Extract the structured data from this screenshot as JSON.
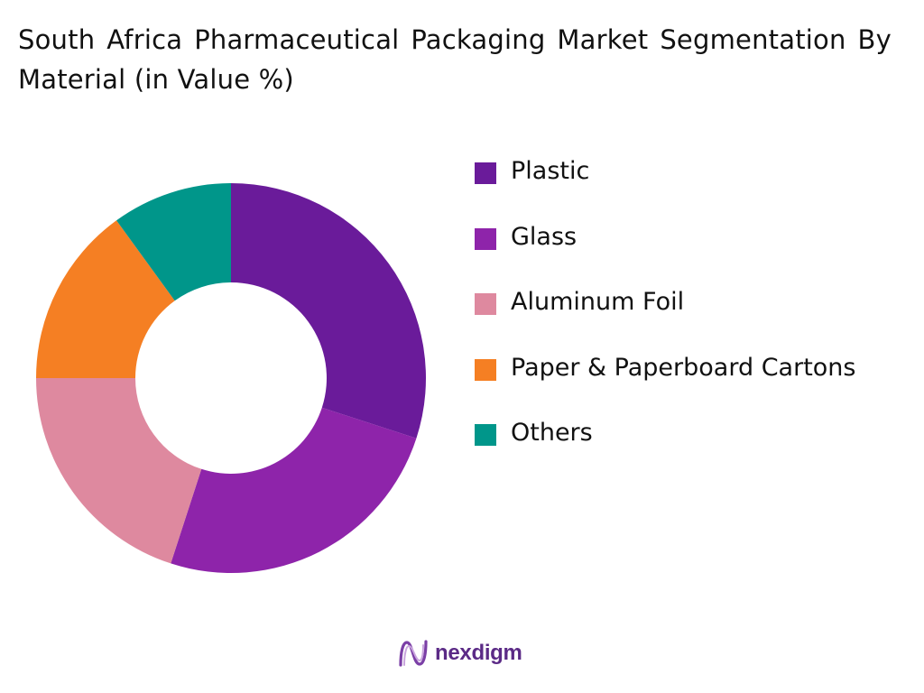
{
  "title": "South Africa Pharmaceutical Packaging Market Segmentation By Material (in Value %)",
  "chart_data": {
    "type": "pie",
    "title": "South Africa Pharmaceutical Packaging Market Segmentation By Material (in Value %)",
    "donut": true,
    "categories": [
      "Plastic",
      "Glass",
      "Aluminum Foil",
      "Paper & Paperboard Cartons",
      "Others"
    ],
    "values": [
      30,
      25,
      20,
      15,
      10
    ],
    "colors": [
      "#6a1b9a",
      "#8e24aa",
      "#de899f",
      "#f57f23",
      "#00968a"
    ],
    "legend_position": "right"
  },
  "logo": {
    "text": "nexdigm",
    "icon": "nexdigm-logo-icon",
    "color": "#5b2a86"
  }
}
